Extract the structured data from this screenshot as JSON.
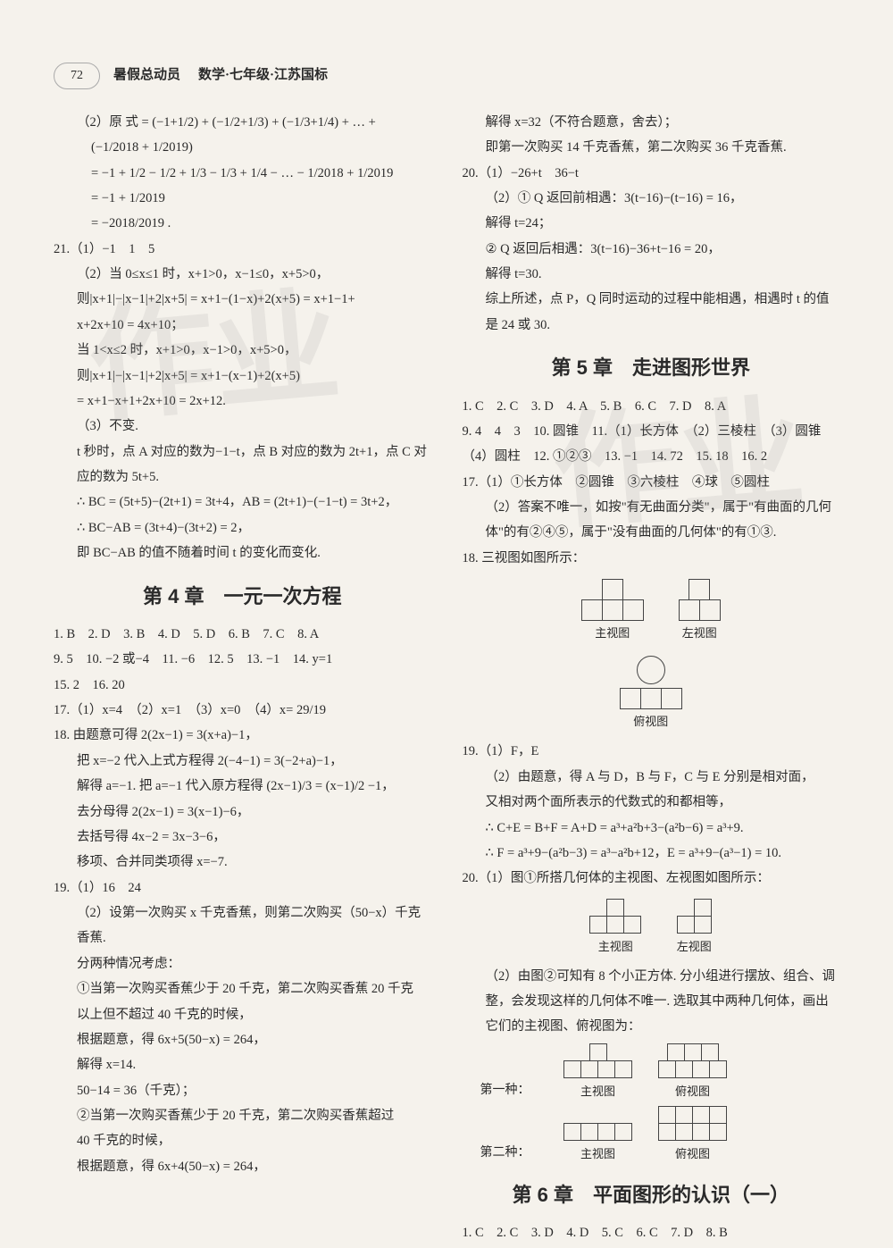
{
  "header": {
    "page_number": "72",
    "title_main": "暑假总动员",
    "title_sub": "数学·七年级·江苏国标"
  },
  "watermarks": {
    "wm1": "作业",
    "wm2": "作业"
  },
  "left_column": {
    "l1": "（2）原 式 = (−1+1/2) + (−1/2+1/3) + (−1/3+1/4) + … +",
    "l2": "(−1/2018 + 1/2019)",
    "l3": "= −1 + 1/2 − 1/2 + 1/3 − 1/3 + 1/4 − … − 1/2018 + 1/2019",
    "l4": "= −1 + 1/2019",
    "l5": "= −2018/2019 .",
    "l6": "21.（1）−1　1　5",
    "l7": "（2）当 0≤x≤1 时，x+1>0，x−1≤0，x+5>0，",
    "l8": "则|x+1|−|x−1|+2|x+5| = x+1−(1−x)+2(x+5) = x+1−1+",
    "l9": "x+2x+10 = 4x+10；",
    "l10": "当 1<x≤2 时，x+1>0，x−1>0，x+5>0，",
    "l11": "则|x+1|−|x−1|+2|x+5| = x+1−(x−1)+2(x+5)",
    "l12": "= x+1−x+1+2x+10 = 2x+12.",
    "l13": "（3）不变.",
    "l14": "t 秒时，点 A 对应的数为−1−t，点 B 对应的数为 2t+1，点 C 对",
    "l15": "应的数为 5t+5.",
    "l16": "∴ BC = (5t+5)−(2t+1) = 3t+4，AB = (2t+1)−(−1−t) = 3t+2，",
    "l17": "∴ BC−AB = (3t+4)−(3t+2) = 2，",
    "l18": "即 BC−AB 的值不随着时间 t 的变化而变化.",
    "chapter4": "第 4 章　一元一次方程",
    "l19": "1. B　2. D　3. B　4. D　5. D　6. B　7. C　8. A",
    "l20": "9. 5　10. −2 或−4　11. −6　12. 5　13. −1　14. y=1",
    "l21": "15. 2　16. 20",
    "l22": "17.（1）x=4　（2）x=1　（3）x=0　（4）x= 29/19",
    "l23": "18. 由题意可得 2(2x−1) = 3(x+a)−1，",
    "l24": "把 x=−2 代入上式方程得 2(−4−1) = 3(−2+a)−1，",
    "l25": "解得 a=−1. 把 a=−1 代入原方程得 (2x−1)/3 = (x−1)/2 −1，",
    "l26": "去分母得 2(2x−1) = 3(x−1)−6，",
    "l27": "去括号得 4x−2 = 3x−3−6，",
    "l28": "移项、合并同类项得 x=−7.",
    "l29": "19.（1）16　24",
    "l30": "（2）设第一次购买 x 千克香蕉，则第二次购买（50−x）千克",
    "l31": "香蕉.",
    "l32": "分两种情况考虑：",
    "l33": "①当第一次购买香蕉少于 20 千克，第二次购买香蕉 20 千克",
    "l34": "以上但不超过 40 千克的时候，",
    "l35": "根据题意，得 6x+5(50−x) = 264，",
    "l36": "解得 x=14.",
    "l37": "50−14 = 36（千克）；",
    "l38": "②当第一次购买香蕉少于 20 千克，第二次购买香蕉超过",
    "l39": "40 千克的时候，",
    "l40": "根据题意，得 6x+4(50−x) = 264，"
  },
  "right_column": {
    "r1": "解得 x=32（不符合题意，舍去）；",
    "r2": "即第一次购买 14 千克香蕉，第二次购买 36 千克香蕉.",
    "r3": "20.（1）−26+t　36−t",
    "r4": "（2）① Q 返回前相遇：3(t−16)−(t−16) = 16，",
    "r5": "解得 t=24；",
    "r6": "② Q 返回后相遇：3(t−16)−36+t−16 = 20，",
    "r7": "解得 t=30.",
    "r8": "综上所述，点 P，Q 同时运动的过程中能相遇，相遇时 t 的值",
    "r9": "是 24 或 30.",
    "chapter5": "第 5 章　走进图形世界",
    "r10": "1. C　2. C　3. D　4. A　5. B　6. C　7. D　8. A",
    "r11": "9. 4　4　3　10. 圆锥　11.（1）长方体　（2）三棱柱　（3）圆锥",
    "r12": "（4）圆柱　12. ①②③　13. −1　14. 72　15. 18　16. 2",
    "r13": "17.（1）①长方体　②圆锥　③六棱柱　④球　⑤圆柱",
    "r14": "（2）答案不唯一，如按\"有无曲面分类\"，属于\"有曲面的几何",
    "r15": "体\"的有②④⑤，属于\"没有曲面的几何体\"的有①③.",
    "r16": "18. 三视图如图所示：",
    "diagram18": {
      "main_view": "主视图",
      "left_view": "左视图",
      "top_view": "俯视图"
    },
    "r17": "19.（1）F，E",
    "r18": "（2）由题意，得 A 与 D，B 与 F，C 与 E 分别是相对面，",
    "r19": "又相对两个面所表示的代数式的和都相等，",
    "r20": "∴ C+E = B+F = A+D = a³+a²b+3−(a²b−6) = a³+9.",
    "r21": "∴ F = a³+9−(a²b−3) = a³−a²b+12，E = a³+9−(a³−1) = 10.",
    "r22": "20.（1）图①所搭几何体的主视图、左视图如图所示：",
    "diagram20_1": {
      "main_view": "主视图",
      "left_view": "左视图"
    },
    "r23": "（2）由图②可知有 8 个小正方体. 分小组进行摆放、组合、调",
    "r24": "整，会发现这样的几何体不唯一. 选取其中两种几何体，画出",
    "r25": "它们的主视图、俯视图为：",
    "kind1_label": "第一种：",
    "kind2_label": "第二种：",
    "diagram20_2": {
      "main_view": "主视图",
      "top_view": "俯视图"
    },
    "chapter6": "第 6 章　平面图形的认识（一）",
    "r26": "1. C　2. C　3. D　4. D　5. C　6. C　7. D　8. B"
  }
}
